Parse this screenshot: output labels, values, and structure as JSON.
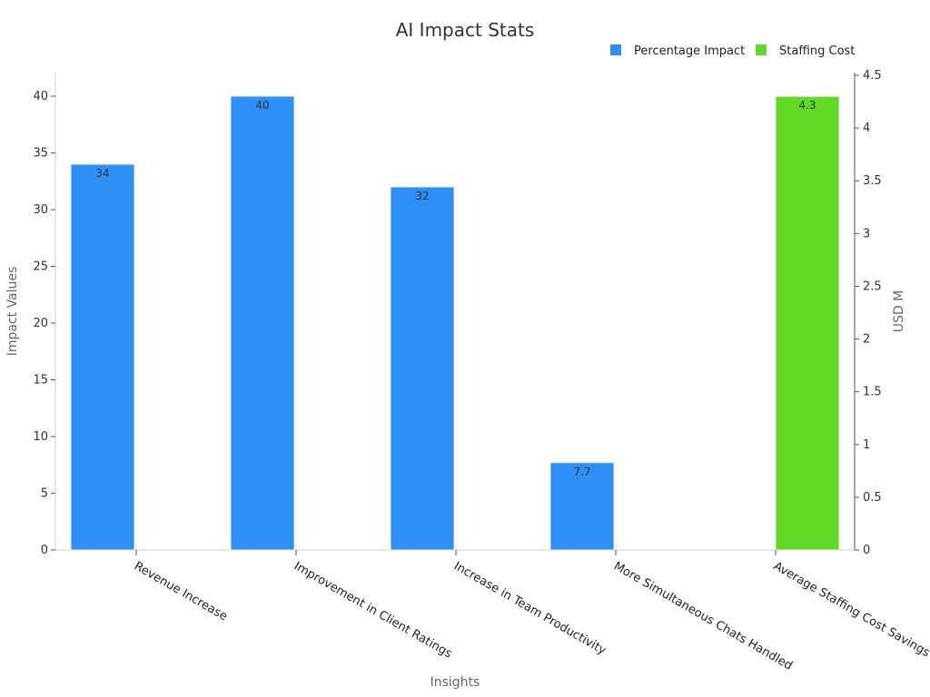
{
  "chart_data": {
    "type": "bar",
    "title": "AI Impact Stats",
    "xlabel": "Insights",
    "ylabel": "Impact Values",
    "y2label": "USD M",
    "categories": [
      "Revenue Increase",
      "Improvement in Client Ratings",
      "Increase in Team Productivity",
      "More Simultaneous Chats Handled",
      "Average Staffing Cost Savings"
    ],
    "series": [
      {
        "name": "Percentage Impact",
        "axis": "left",
        "color": "#2e90f5",
        "values": [
          34,
          40,
          32,
          7.7,
          null
        ],
        "labels": [
          "34",
          "40",
          "32",
          "7.7",
          null
        ]
      },
      {
        "name": "Staffing Cost",
        "axis": "right",
        "color": "#62d926",
        "values": [
          null,
          null,
          null,
          null,
          4.3
        ],
        "labels": [
          null,
          null,
          null,
          null,
          "4.3"
        ]
      }
    ],
    "ylim": [
      0,
      42
    ],
    "yticks": [
      "0",
      "5",
      "10",
      "15",
      "20",
      "25",
      "30",
      "35",
      "40"
    ],
    "y2lim": [
      0,
      4.5
    ],
    "y2ticks": [
      "0",
      "0.5",
      "1",
      "1.5",
      "2",
      "2.5",
      "3",
      "3.5",
      "4",
      "4.5"
    ],
    "legend_position": "top-right",
    "grid": false
  }
}
